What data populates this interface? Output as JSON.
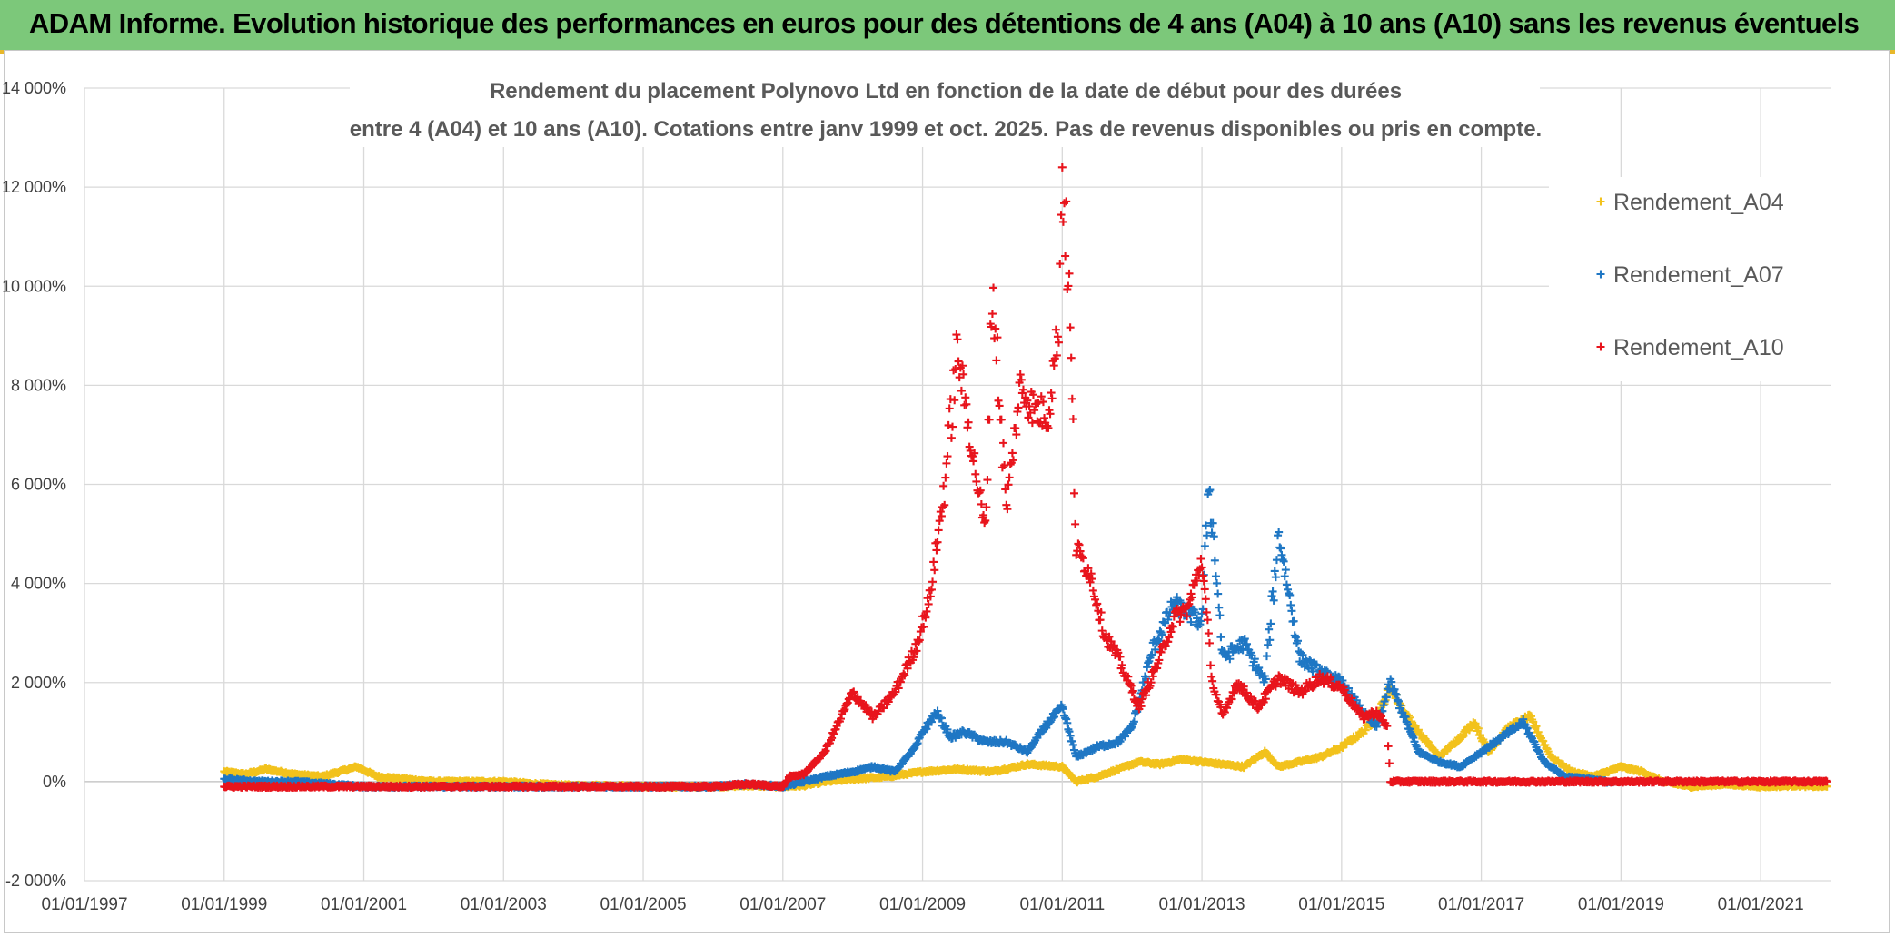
{
  "header": {
    "title": "ADAM Informe. Evolution historique des performances en euros pour des détentions de 4 ans (A04) à 10 ans (A10) sans les revenus éventuels"
  },
  "colors": {
    "banner": "#7cc87a",
    "A04": "#f2c21c",
    "A07": "#1f77c4",
    "A10": "#e8141c",
    "grid": "#d9d9d9"
  },
  "chart_data": {
    "type": "scatter",
    "title_line1": "Rendement du placement Polynovo Ltd en fonction de la date de début pour des durées",
    "title_line2": "entre 4 (A04) et 10 ans (A10). Cotations entre janv 1999 et oct. 2025. Pas de revenus disponibles ou pris en compte.",
    "xlabel": "",
    "ylabel": "",
    "xlim": [
      1997.0,
      2022.0
    ],
    "ylim": [
      -2000,
      14000
    ],
    "y_ticks": [
      14000,
      12000,
      10000,
      8000,
      6000,
      4000,
      2000,
      0,
      -2000
    ],
    "y_tick_labels": [
      "14 000%",
      "12 000%",
      "10 000%",
      "8 000%",
      "6 000%",
      "4 000%",
      "2 000%",
      "0%",
      "-2 000%"
    ],
    "x_ticks": [
      1997,
      1999,
      2001,
      2003,
      2005,
      2007,
      2009,
      2011,
      2013,
      2015,
      2017,
      2019,
      2021
    ],
    "x_tick_labels": [
      "01/01/1997",
      "01/01/1999",
      "01/01/2001",
      "01/01/2003",
      "01/01/2005",
      "01/01/2007",
      "01/01/2009",
      "01/01/2011",
      "01/01/2013",
      "01/01/2015",
      "01/01/2017",
      "01/01/2019",
      "01/01/2021"
    ],
    "legend_position": "top-right",
    "series": [
      {
        "name": "Rendement_A04",
        "marker": "+",
        "x": [
          1999.0,
          1999.3,
          1999.6,
          2000.0,
          2000.4,
          2000.9,
          2001.2,
          2001.6,
          2002.0,
          2002.5,
          2003.0,
          2003.5,
          2004.0,
          2004.5,
          2005.0,
          2005.5,
          2006.0,
          2006.5,
          2007.0,
          2007.3,
          2007.6,
          2008.0,
          2008.5,
          2009.0,
          2009.5,
          2010.0,
          2010.5,
          2011.0,
          2011.2,
          2011.5,
          2011.8,
          2012.1,
          2012.4,
          2012.7,
          2013.0,
          2013.3,
          2013.6,
          2013.9,
          2014.1,
          2014.4,
          2014.7,
          2015.0,
          2015.3,
          2015.5,
          2015.7,
          2015.9,
          2016.1,
          2016.4,
          2016.7,
          2016.9,
          2017.1,
          2017.4,
          2017.7,
          2018.0,
          2018.3,
          2018.6,
          2019.0,
          2019.3,
          2019.6,
          2020.0,
          2020.5,
          2021.0,
          2021.5,
          2021.95
        ],
        "y": [
          200,
          150,
          250,
          150,
          100,
          300,
          100,
          50,
          0,
          0,
          0,
          -50,
          -80,
          -80,
          -100,
          -100,
          -100,
          -80,
          -100,
          -80,
          0,
          50,
          100,
          200,
          250,
          200,
          350,
          300,
          0,
          100,
          250,
          400,
          350,
          450,
          400,
          350,
          300,
          600,
          300,
          400,
          500,
          700,
          1000,
          1300,
          1900,
          1400,
          1000,
          500,
          900,
          1200,
          600,
          1100,
          1300,
          500,
          200,
          100,
          300,
          200,
          0,
          -100,
          -50,
          -100,
          -80,
          -100
        ]
      },
      {
        "name": "Rendement_A07",
        "marker": "+",
        "x": [
          1999.0,
          1999.5,
          2000.0,
          2000.5,
          2001.0,
          2002.0,
          2003.0,
          2004.0,
          2005.0,
          2006.0,
          2006.5,
          2007.0,
          2007.3,
          2007.6,
          2008.0,
          2008.3,
          2008.6,
          2008.9,
          2009.0,
          2009.2,
          2009.4,
          2009.6,
          2009.9,
          2010.2,
          2010.5,
          2010.8,
          2011.0,
          2011.2,
          2011.5,
          2011.8,
          2012.0,
          2012.3,
          2012.6,
          2012.8,
          2013.0,
          2013.1,
          2013.3,
          2013.6,
          2013.9,
          2014.1,
          2014.4,
          2014.7,
          2015.0,
          2015.3,
          2015.5,
          2015.7,
          2015.9,
          2016.1,
          2016.4,
          2016.7,
          2017.0,
          2017.3,
          2017.6,
          2017.9,
          2018.2,
          2018.5,
          2018.8,
          2018.9
        ],
        "y": [
          50,
          0,
          0,
          -50,
          -100,
          -100,
          -100,
          -100,
          -100,
          -100,
          -50,
          -100,
          0,
          100,
          200,
          300,
          200,
          700,
          1000,
          1400,
          900,
          1000,
          800,
          800,
          600,
          1200,
          1500,
          500,
          700,
          800,
          1100,
          2700,
          3600,
          3400,
          3200,
          6100,
          2500,
          2800,
          2000,
          5000,
          2500,
          2200,
          2000,
          1400,
          1100,
          2000,
          1300,
          600,
          400,
          300,
          600,
          900,
          1200,
          400,
          100,
          50,
          0,
          0
        ]
      },
      {
        "name": "Rendement_A10",
        "marker": "+",
        "x": [
          1999.0,
          2000.0,
          2001.0,
          2002.0,
          2003.0,
          2004.0,
          2005.0,
          2006.0,
          2006.5,
          2007.0,
          2007.1,
          2007.3,
          2007.6,
          2008.0,
          2008.3,
          2008.6,
          2008.9,
          2009.1,
          2009.3,
          2009.5,
          2009.7,
          2009.9,
          2010.0,
          2010.2,
          2010.4,
          2010.6,
          2010.8,
          2010.95,
          2011.0,
          2011.1,
          2011.2,
          2011.4,
          2011.6,
          2011.8,
          2012.1,
          2012.4,
          2012.6,
          2012.8,
          2013.0,
          2013.15,
          2013.3,
          2013.5,
          2013.8,
          2014.1,
          2014.4,
          2014.7,
          2015.0,
          2015.3,
          2015.5,
          2015.65,
          2015.7,
          2016.0,
          2017.0,
          2018.0,
          2019.0,
          2020.0,
          2021.0,
          2021.95
        ],
        "y": [
          -100,
          -100,
          -100,
          -100,
          -100,
          -100,
          -100,
          -100,
          -50,
          -100,
          100,
          150,
          600,
          1800,
          1300,
          1800,
          2700,
          3700,
          5800,
          8700,
          6800,
          5000,
          10100,
          5500,
          8000,
          7500,
          7400,
          9300,
          12400,
          9800,
          4700,
          4200,
          3000,
          2500,
          1500,
          2500,
          3300,
          3500,
          4500,
          2000,
          1300,
          2000,
          1500,
          2100,
          1800,
          2100,
          1900,
          1300,
          1400,
          1100,
          0,
          0,
          0,
          0,
          0,
          0,
          0,
          0
        ]
      }
    ]
  }
}
